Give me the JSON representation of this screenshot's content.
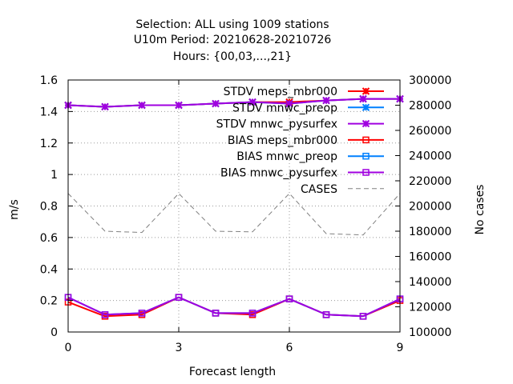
{
  "chart_data": {
    "type": "line",
    "title_lines": [
      "Selection: ALL using  1009 stations",
      "U10m   Period: 20210628-20210726",
      "Hours: {00,03,...,21}"
    ],
    "xlabel": "Forecast length",
    "ylabel": "m/s",
    "y2label": "No cases",
    "xlim": [
      0,
      9
    ],
    "ylim": [
      0,
      1.6
    ],
    "y2lim": [
      100000,
      300000
    ],
    "xticks": [
      0,
      3,
      6,
      9
    ],
    "yticks": [
      0,
      0.2,
      0.4,
      0.6,
      0.8,
      1,
      1.2,
      1.4,
      1.6
    ],
    "y2ticks": [
      100000,
      120000,
      140000,
      160000,
      180000,
      200000,
      220000,
      240000,
      260000,
      280000,
      300000
    ],
    "grid": true,
    "legend_position": "top-right",
    "x": [
      0,
      1,
      2,
      3,
      4,
      5,
      6,
      7,
      8,
      9
    ],
    "series": [
      {
        "name": "STDV meps_mbr000",
        "color": "#ff0000",
        "marker": "star",
        "axis": "y",
        "dash": false,
        "values": [
          1.44,
          1.43,
          1.44,
          1.44,
          1.45,
          1.46,
          1.46,
          1.47,
          1.48,
          1.48
        ]
      },
      {
        "name": "STDV mnwc_preop",
        "color": "#0080ff",
        "marker": "star",
        "axis": "y",
        "dash": false,
        "values": [
          1.44,
          1.43,
          1.44,
          1.44,
          1.45,
          1.46,
          1.45,
          1.47,
          1.48,
          1.48
        ]
      },
      {
        "name": "STDV mnwc_pysurfex",
        "color": "#a000e0",
        "marker": "star",
        "axis": "y",
        "dash": false,
        "values": [
          1.44,
          1.43,
          1.44,
          1.44,
          1.45,
          1.46,
          1.45,
          1.47,
          1.48,
          1.48
        ]
      },
      {
        "name": "BIAS meps_mbr000",
        "color": "#ff0000",
        "marker": "square",
        "axis": "y",
        "dash": false,
        "values": [
          0.19,
          0.1,
          0.11,
          0.22,
          0.12,
          0.11,
          0.21,
          0.11,
          0.1,
          0.2
        ]
      },
      {
        "name": "BIAS mnwc_preop",
        "color": "#0080ff",
        "marker": "square",
        "axis": "y",
        "dash": false,
        "values": [
          0.22,
          0.11,
          0.12,
          0.22,
          0.12,
          0.12,
          0.21,
          0.11,
          0.1,
          0.21
        ]
      },
      {
        "name": "BIAS mnwc_pysurfex",
        "color": "#a000e0",
        "marker": "square",
        "axis": "y",
        "dash": false,
        "values": [
          0.22,
          0.11,
          0.12,
          0.22,
          0.12,
          0.12,
          0.21,
          0.11,
          0.1,
          0.21
        ]
      },
      {
        "name": "CASES",
        "color": "#808080",
        "marker": "none",
        "axis": "y2",
        "dash": true,
        "values": [
          210000,
          180000,
          179000,
          210000,
          180000,
          179500,
          210000,
          178000,
          177000,
          210000
        ]
      }
    ]
  }
}
